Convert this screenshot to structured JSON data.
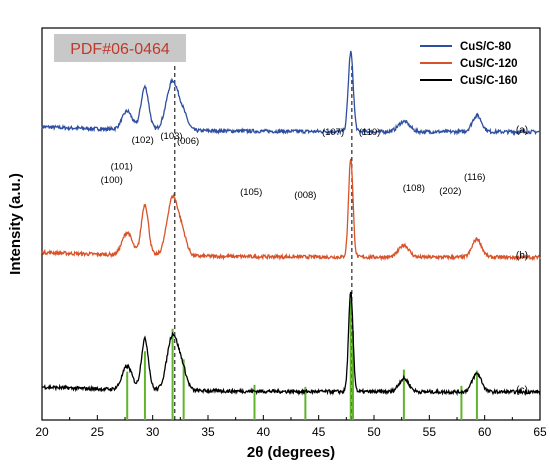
{
  "chart_data": {
    "type": "line",
    "xlabel": "2θ (degrees)",
    "ylabel": "Intensity (a.u.)",
    "xlim": [
      20,
      65
    ],
    "xticks": [
      20,
      25,
      30,
      35,
      40,
      45,
      50,
      55,
      60,
      65
    ],
    "y_ticks_shown": false,
    "grid": false,
    "legend": {
      "placement": "top-right"
    },
    "reference_label": "PDF#06-0464",
    "reference_lines_x": [
      32.0,
      48.0
    ],
    "series": [
      {
        "name": "CuS/C-80",
        "tag": "(a)",
        "color": "#2e4fa0",
        "offset": 2.55,
        "peaks": [
          {
            "x": 27.7,
            "height": 0.18,
            "width": 0.45
          },
          {
            "x": 29.3,
            "height": 0.42,
            "width": 0.35
          },
          {
            "x": 31.8,
            "height": 0.48,
            "width": 0.55
          },
          {
            "x": 32.8,
            "height": 0.12,
            "width": 0.4
          },
          {
            "x": 47.9,
            "height": 0.78,
            "width": 0.22
          },
          {
            "x": 52.7,
            "height": 0.1,
            "width": 0.5
          },
          {
            "x": 59.3,
            "height": 0.16,
            "width": 0.42
          }
        ]
      },
      {
        "name": "CuS/C-120",
        "tag": "(b)",
        "color": "#d9532a",
        "offset": 1.32,
        "peaks": [
          {
            "x": 27.7,
            "height": 0.22,
            "width": 0.45
          },
          {
            "x": 29.3,
            "height": 0.5,
            "width": 0.32
          },
          {
            "x": 31.8,
            "height": 0.57,
            "width": 0.5
          },
          {
            "x": 32.7,
            "height": 0.18,
            "width": 0.4
          },
          {
            "x": 47.9,
            "height": 0.97,
            "width": 0.2
          },
          {
            "x": 52.7,
            "height": 0.12,
            "width": 0.45
          },
          {
            "x": 59.3,
            "height": 0.18,
            "width": 0.42
          }
        ]
      },
      {
        "name": "CuS/C-160",
        "tag": "(c)",
        "color": "#000000",
        "offset": 0.0,
        "peaks": [
          {
            "x": 27.7,
            "height": 0.23,
            "width": 0.45
          },
          {
            "x": 29.3,
            "height": 0.5,
            "width": 0.32
          },
          {
            "x": 31.8,
            "height": 0.54,
            "width": 0.5
          },
          {
            "x": 32.7,
            "height": 0.18,
            "width": 0.4
          },
          {
            "x": 47.9,
            "height": 0.97,
            "width": 0.2
          },
          {
            "x": 52.7,
            "height": 0.13,
            "width": 0.45
          },
          {
            "x": 59.3,
            "height": 0.18,
            "width": 0.42
          }
        ]
      }
    ],
    "reference_sticks": [
      {
        "x": 27.7,
        "height": 0.2
      },
      {
        "x": 29.3,
        "height": 0.4
      },
      {
        "x": 31.8,
        "height": 0.62
      },
      {
        "x": 32.8,
        "height": 0.32
      },
      {
        "x": 39.2,
        "height": 0.07
      },
      {
        "x": 43.8,
        "height": 0.05
      },
      {
        "x": 47.9,
        "height": 0.9
      },
      {
        "x": 48.1,
        "height": 0.6
      },
      {
        "x": 52.7,
        "height": 0.22
      },
      {
        "x": 57.9,
        "height": 0.06
      },
      {
        "x": 59.3,
        "height": 0.21
      }
    ],
    "peak_labels": [
      {
        "text": "(100)",
        "x": 26.3,
        "y": 2.05
      },
      {
        "text": "(101)",
        "x": 27.2,
        "y": 2.18
      },
      {
        "text": "(102)",
        "x": 29.1,
        "y": 2.44
      },
      {
        "text": "(103)",
        "x": 31.7,
        "y": 2.48
      },
      {
        "text": "(006)",
        "x": 33.2,
        "y": 2.43
      },
      {
        "text": "(105)",
        "x": 38.9,
        "y": 1.93
      },
      {
        "text": "(008)",
        "x": 43.8,
        "y": 1.9
      },
      {
        "text": "(107)",
        "x": 46.3,
        "y": 2.52
      },
      {
        "text": "(110)",
        "x": 49.6,
        "y": 2.52
      },
      {
        "text": "(108)",
        "x": 53.6,
        "y": 1.97
      },
      {
        "text": "(202)",
        "x": 56.9,
        "y": 1.94
      },
      {
        "text": "(116)",
        "x": 59.1,
        "y": 2.08
      }
    ]
  }
}
